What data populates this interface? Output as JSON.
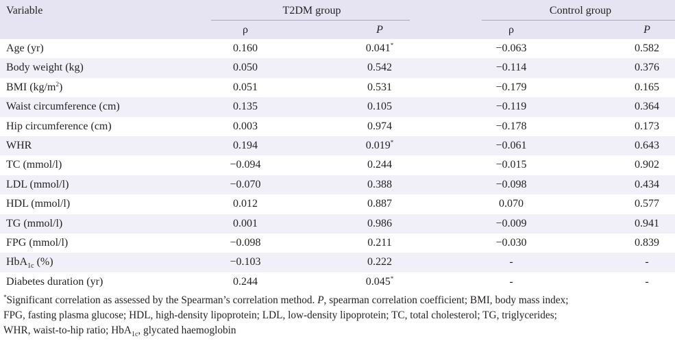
{
  "header": {
    "variable": "Variable",
    "t2dm_group": "T2DM group",
    "control_group": "Control group",
    "rho": "ρ",
    "p": "P"
  },
  "rows": [
    {
      "variable": "Age (yr)",
      "t2dm_rho": "0.160",
      "t2dm_p": "0.041",
      "t2dm_sig": "*",
      "ctrl_rho": "−0.063",
      "ctrl_p": "0.582"
    },
    {
      "variable": "Body weight (kg)",
      "t2dm_rho": "0.050",
      "t2dm_p": "0.542",
      "t2dm_sig": "",
      "ctrl_rho": "−0.114",
      "ctrl_p": "0.376"
    },
    {
      "variable": "BMI (kg/m",
      "variable_sup": "2",
      "variable_tail": ")",
      "t2dm_rho": "0.051",
      "t2dm_p": "0.531",
      "t2dm_sig": "",
      "ctrl_rho": "−0.179",
      "ctrl_p": "0.165"
    },
    {
      "variable": "Waist circumference (cm)",
      "t2dm_rho": "0.135",
      "t2dm_p": "0.105",
      "t2dm_sig": "",
      "ctrl_rho": "−0.119",
      "ctrl_p": "0.364"
    },
    {
      "variable": "Hip circumference (cm)",
      "t2dm_rho": "0.003",
      "t2dm_p": "0.974",
      "t2dm_sig": "",
      "ctrl_rho": "−0.178",
      "ctrl_p": "0.173"
    },
    {
      "variable": "WHR",
      "t2dm_rho": "0.194",
      "t2dm_p": "0.019",
      "t2dm_sig": "*",
      "ctrl_rho": "−0.061",
      "ctrl_p": "0.643"
    },
    {
      "variable": "TC (mmol/l)",
      "t2dm_rho": "−0.094",
      "t2dm_p": "0.244",
      "t2dm_sig": "",
      "ctrl_rho": "−0.015",
      "ctrl_p": "0.902"
    },
    {
      "variable": "LDL (mmol/l)",
      "t2dm_rho": "−0.070",
      "t2dm_p": "0.388",
      "t2dm_sig": "",
      "ctrl_rho": "−0.098",
      "ctrl_p": "0.434"
    },
    {
      "variable": "HDL (mmol/l)",
      "t2dm_rho": "0.012",
      "t2dm_p": "0.887",
      "t2dm_sig": "",
      "ctrl_rho": "0.070",
      "ctrl_p": "0.577"
    },
    {
      "variable": "TG (mmol/l)",
      "t2dm_rho": "0.001",
      "t2dm_p": "0.986",
      "t2dm_sig": "",
      "ctrl_rho": "−0.009",
      "ctrl_p": "0.941"
    },
    {
      "variable": "FPG (mmol/l)",
      "t2dm_rho": "−0.098",
      "t2dm_p": "0.211",
      "t2dm_sig": "",
      "ctrl_rho": "−0.030",
      "ctrl_p": "0.839"
    },
    {
      "variable": "HbA",
      "variable_sub": "1c",
      "variable_tail": " (%)",
      "t2dm_rho": "−0.103",
      "t2dm_p": "0.222",
      "t2dm_sig": "",
      "ctrl_rho": "-",
      "ctrl_p": "-"
    },
    {
      "variable": "Diabetes duration (yr)",
      "t2dm_rho": "0.244",
      "t2dm_p": "0.045",
      "t2dm_sig": "*",
      "ctrl_rho": "-",
      "ctrl_p": "-"
    }
  ],
  "footnote": {
    "star": "*",
    "line1_a": "Significant correlation as assessed by the Spearman’s correlation method. ",
    "line1_p": "P",
    "line1_b": ", spearman correlation coefficient; BMI, body mass index;",
    "line2": "FPG, fasting plasma glucose; HDL, high-density lipoprotein; LDL, low-density lipoprotein; TC, total cholesterol; TG, triglycerides;",
    "line3_a": "WHR, waist-to-hip ratio; HbA",
    "line3_sub": "1c",
    "line3_b": ", glycated haemoglobin"
  }
}
